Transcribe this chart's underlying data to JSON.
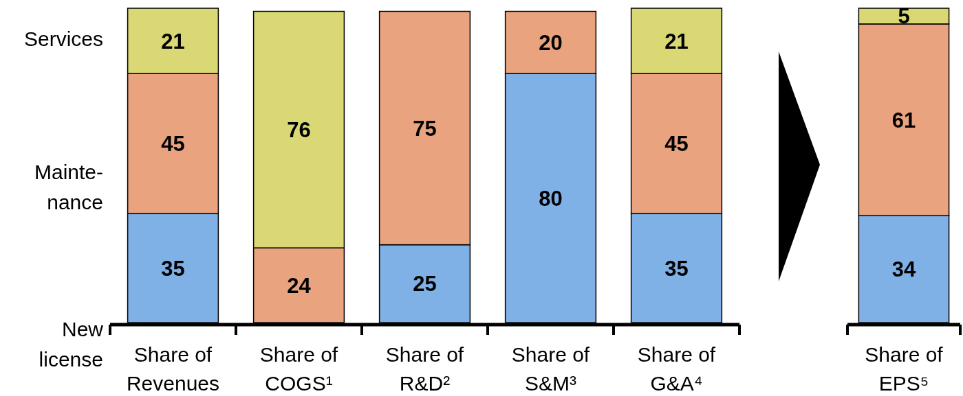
{
  "chart_data": [
    {
      "type": "bar",
      "stacked": true,
      "data_labels": true,
      "legend": "left",
      "categories": [
        "Share of\nRevenues",
        "Share of\nCOGS¹",
        "Share of\nR&D²",
        "Share of\nS&M³",
        "Share of\nG&A⁴"
      ],
      "series": [
        {
          "name": "New\nlicense",
          "color": "#7fb0e6",
          "values": [
            35,
            null,
            25,
            80,
            35
          ]
        },
        {
          "name": "Mainte-\nnance",
          "color": "#e9a37e",
          "values": [
            45,
            24,
            75,
            20,
            45
          ]
        },
        {
          "name": "Services",
          "color": "#d9d874",
          "values": [
            21,
            76,
            null,
            null,
            21
          ]
        }
      ]
    },
    {
      "type": "bar",
      "stacked": true,
      "data_labels": true,
      "categories": [
        "Share of\nEPS⁵"
      ],
      "series": [
        {
          "color": "#7fb0e6",
          "values": [
            34
          ]
        },
        {
          "color": "#e9a37e",
          "values": [
            61
          ]
        },
        {
          "color": "#d9d874",
          "values": [
            5
          ]
        }
      ]
    }
  ]
}
